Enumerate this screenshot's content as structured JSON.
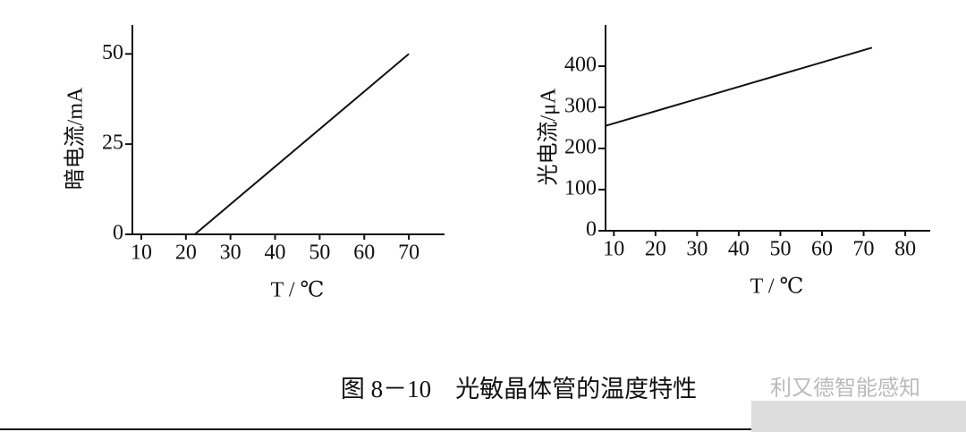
{
  "chart_data": [
    {
      "type": "line",
      "x_label": "T / ℃",
      "y_label": "暗电流/mA",
      "x": [
        22,
        70
      ],
      "values": [
        0,
        50
      ],
      "color": "#111111",
      "xlim": [
        8,
        78
      ],
      "xticks": [
        10,
        20,
        30,
        40,
        50,
        60,
        70
      ],
      "ylim": [
        0,
        58
      ],
      "yticks": [
        0,
        25,
        50
      ]
    },
    {
      "type": "line",
      "x_label": "T / ℃",
      "y_label": "光电流/μA",
      "x": [
        8,
        72
      ],
      "values": [
        255,
        445
      ],
      "color": "#111111",
      "xlim": [
        8,
        86
      ],
      "xticks": [
        10,
        20,
        30,
        40,
        50,
        60,
        70,
        80
      ],
      "ylim": [
        0,
        500
      ],
      "yticks": [
        0,
        100,
        200,
        300,
        400
      ]
    }
  ],
  "caption": "图 8－10　光敏晶体管的温度特性",
  "watermark": "利又德智能感知"
}
